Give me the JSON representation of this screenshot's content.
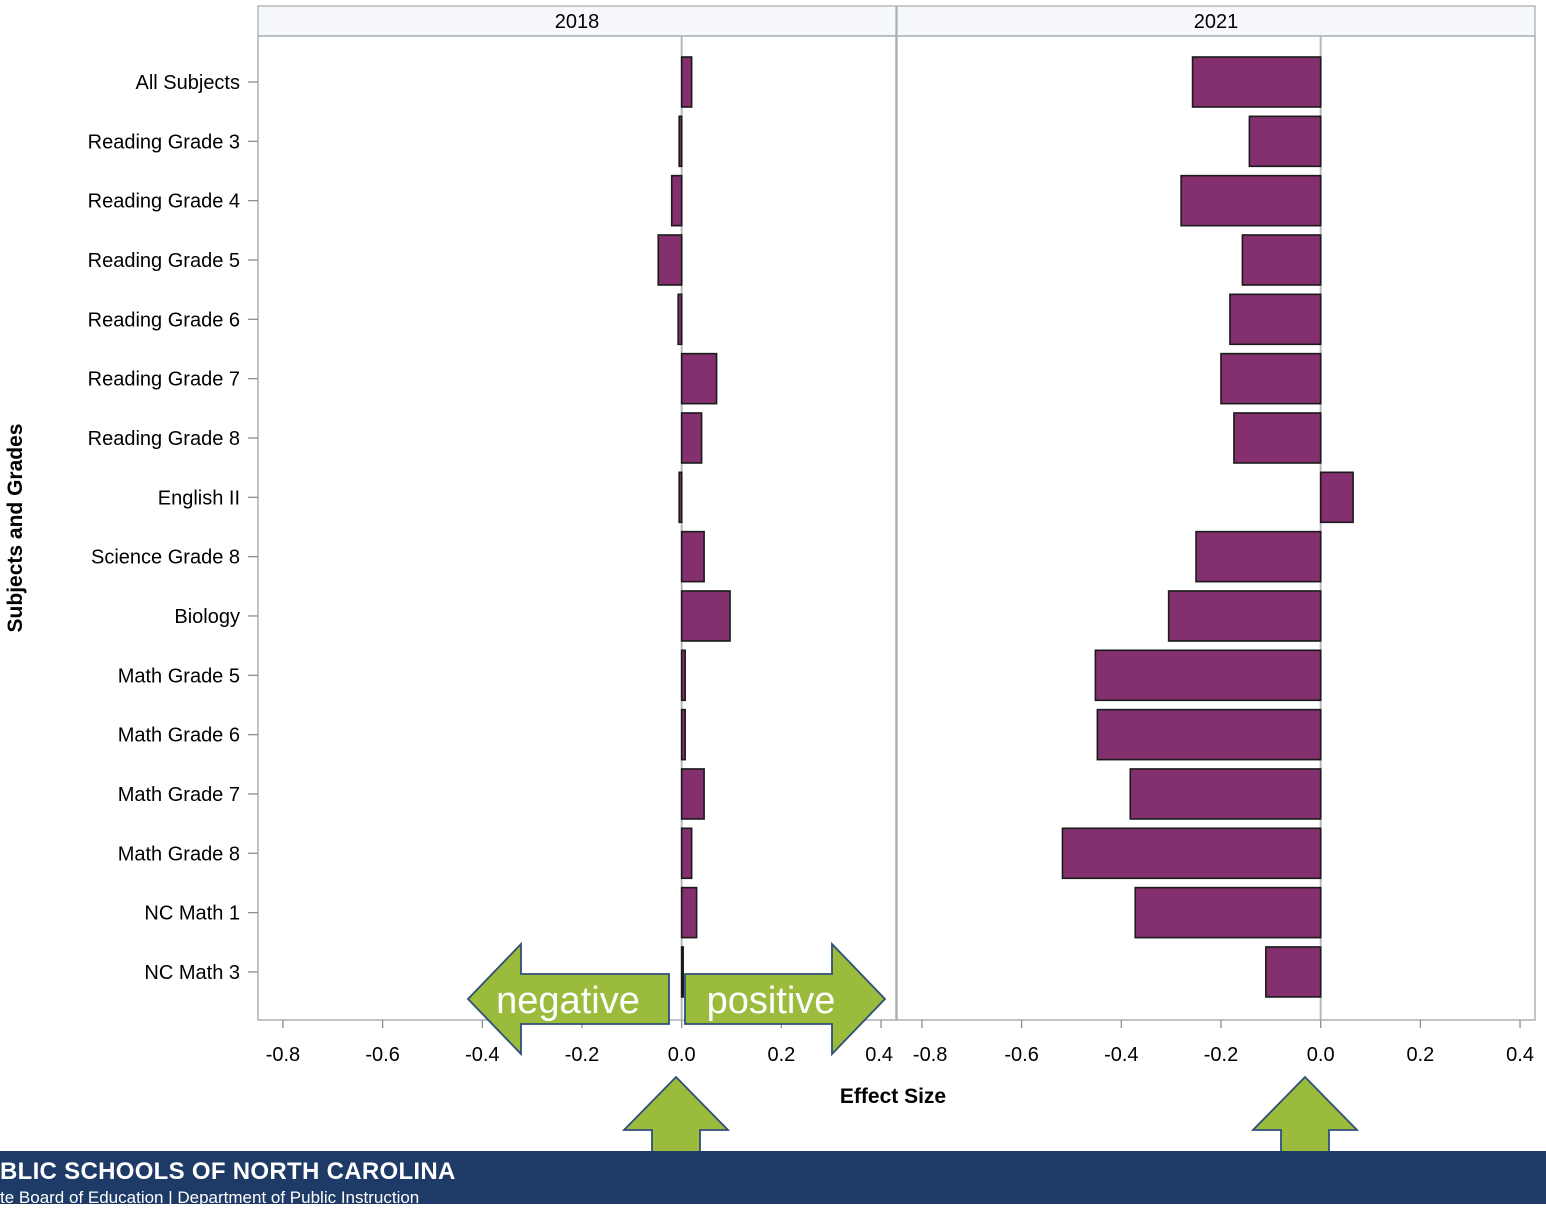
{
  "footer": {
    "org": "BLIC SCHOOLS OF NORTH CAROLINA",
    "subtitle": "te Board of Education | Department of Public Instruction"
  },
  "chart_data": {
    "type": "bar",
    "orientation": "horizontal",
    "ylabel": "Subjects and Grades",
    "xlabel": "Effect Size",
    "xlim": [
      -0.85,
      0.43
    ],
    "xticks": [
      -0.8,
      -0.6,
      -0.4,
      -0.2,
      0.0,
      0.2,
      0.4
    ],
    "xtick_labels": [
      "-0.8",
      "-0.6",
      "-0.4",
      "-0.2",
      "0.0",
      "0.2",
      "0.4"
    ],
    "grid": false,
    "bar_color": "#84306e",
    "categories": [
      "All Subjects",
      "Reading Grade 3",
      "Reading Grade 4",
      "Reading Grade 5",
      "Reading Grade 6",
      "Reading Grade 7",
      "Reading Grade 8",
      "English II",
      "Science Grade 8",
      "Biology",
      "Math Grade 5",
      "Math Grade 6",
      "Math Grade 7",
      "Math Grade 8",
      "NC Math 1",
      "NC Math 3"
    ],
    "panels": [
      {
        "name": "2018",
        "values": [
          0.02,
          -0.005,
          -0.02,
          -0.047,
          -0.007,
          0.07,
          0.04,
          -0.005,
          0.045,
          0.097,
          0.007,
          0.007,
          0.045,
          0.02,
          0.03,
          0.0
        ]
      },
      {
        "name": "2021",
        "values": [
          -0.257,
          -0.143,
          -0.28,
          -0.157,
          -0.182,
          -0.2,
          -0.174,
          0.065,
          -0.25,
          -0.305,
          -0.452,
          -0.448,
          -0.382,
          -0.518,
          -0.372,
          -0.11
        ]
      }
    ],
    "annotations": {
      "arrow_left_label": "negative",
      "arrow_right_label": "positive",
      "arrow_color": "#9bbb3c"
    }
  }
}
